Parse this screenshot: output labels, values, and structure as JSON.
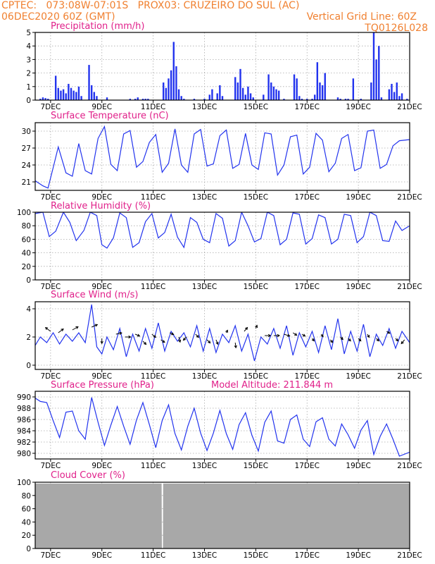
{
  "header": {
    "line1": "CPTEC:   073:08W-07:01S   PROX03: CRUZEIRO DO SUL (AC)",
    "date": "06DEC2020 60Z (GMT)",
    "grid_note": "Vertical Grid Line: 60Z",
    "code": "TQ0126L028",
    "color": "#f08030"
  },
  "colors": {
    "series": "#2233ee",
    "title": "#e0208a",
    "bar": "#2233ee",
    "cloud": "#a8a8a8",
    "grid": "#aaaaaa"
  },
  "x_ticks": [
    "7DEC",
    "9DEC",
    "11DEC",
    "13DEC",
    "15DEC",
    "17DEC",
    "19DEC",
    "21DEC"
  ],
  "x_tick_days": [
    7,
    9,
    11,
    13,
    15,
    17,
    19,
    21
  ],
  "x_range_days": [
    6.4,
    21
  ],
  "chart_data": [
    {
      "type": "bar",
      "title": "Precipitation (mm/h)",
      "ylim": [
        0,
        5
      ],
      "yticks": [
        0,
        1,
        2,
        3,
        4,
        5
      ],
      "grid": true,
      "x": [
        6.6,
        6.7,
        6.8,
        6.9,
        7.2,
        7.3,
        7.4,
        7.5,
        7.6,
        7.7,
        7.8,
        7.9,
        8.0,
        8.1,
        8.2,
        8.5,
        8.6,
        8.7,
        8.8,
        9.2,
        10.1,
        10.3,
        10.4,
        10.6,
        10.7,
        10.8,
        11.4,
        11.5,
        11.6,
        11.7,
        11.8,
        11.9,
        12.0,
        12.1,
        12.2,
        12.6,
        13.0,
        13.2,
        13.3,
        13.5,
        13.6,
        13.7,
        14.2,
        14.3,
        14.4,
        14.5,
        14.6,
        14.7,
        14.8,
        14.9,
        15.3,
        15.5,
        15.6,
        15.7,
        15.8,
        15.9,
        16.1,
        16.5,
        16.6,
        16.7,
        16.8,
        17.0,
        17.2,
        17.3,
        17.4,
        17.5,
        17.6,
        17.7,
        18.2,
        18.3,
        18.5,
        18.6,
        18.8,
        19.1,
        19.5,
        19.6,
        19.7,
        19.8,
        19.9,
        20.2,
        20.3,
        20.4,
        20.5,
        20.6,
        20.7,
        20.9
      ],
      "values": [
        0.1,
        0.2,
        0.15,
        0.1,
        1.8,
        0.9,
        0.7,
        0.8,
        0.5,
        1.2,
        0.9,
        0.7,
        0.6,
        1.0,
        0.3,
        2.6,
        1.1,
        0.6,
        0.3,
        0.2,
        0.1,
        0.1,
        0.2,
        0.1,
        0.1,
        0.1,
        1.3,
        0.9,
        1.6,
        2.2,
        4.3,
        2.5,
        0.8,
        0.3,
        0.1,
        0.1,
        0.1,
        0.4,
        0.8,
        0.5,
        1.1,
        0.3,
        1.7,
        1.3,
        2.3,
        0.9,
        0.4,
        1.0,
        0.5,
        0.2,
        0.4,
        1.9,
        1.3,
        1.0,
        0.8,
        0.7,
        0.1,
        1.9,
        1.6,
        0.3,
        0.1,
        0.1,
        0.1,
        0.4,
        2.8,
        1.3,
        1.1,
        2.0,
        0.2,
        0.1,
        0.1,
        0.1,
        1.6,
        0.1,
        1.3,
        5.0,
        3.0,
        4.0,
        0.2,
        0.8,
        1.2,
        0.6,
        1.3,
        0.3,
        0.5,
        0.1
      ]
    },
    {
      "type": "line",
      "title": "Surface Temperature (nC)",
      "ylim": [
        19.5,
        31.5
      ],
      "yticks": [
        21,
        24,
        27,
        30
      ],
      "grid": true,
      "x": [
        6.4,
        6.7,
        6.9,
        7.1,
        7.3,
        7.6,
        7.85,
        8.1,
        8.35,
        8.6,
        8.85,
        9.1,
        9.35,
        9.6,
        9.85,
        10.1,
        10.35,
        10.6,
        10.85,
        11.1,
        11.35,
        11.6,
        11.85,
        12.1,
        12.35,
        12.6,
        12.85,
        13.1,
        13.35,
        13.6,
        13.85,
        14.1,
        14.35,
        14.6,
        14.85,
        15.1,
        15.35,
        15.6,
        15.85,
        16.1,
        16.35,
        16.6,
        16.85,
        17.1,
        17.35,
        17.6,
        17.85,
        18.1,
        18.35,
        18.6,
        18.85,
        19.1,
        19.35,
        19.6,
        19.85,
        20.1,
        20.35,
        20.6,
        21.0
      ],
      "values": [
        21.2,
        20.3,
        19.9,
        23.5,
        27.2,
        22.6,
        22.0,
        27.8,
        23.0,
        22.4,
        28.7,
        30.8,
        24.1,
        23.0,
        29.5,
        30.1,
        23.6,
        24.6,
        28.0,
        29.4,
        22.7,
        24.3,
        30.4,
        24.0,
        22.7,
        29.5,
        30.3,
        23.8,
        24.2,
        29.2,
        30.2,
        23.4,
        24.1,
        29.6,
        24.0,
        23.2,
        29.7,
        29.5,
        22.2,
        24.0,
        29.0,
        29.3,
        22.4,
        23.6,
        29.6,
        28.4,
        22.8,
        24.3,
        28.7,
        29.4,
        23.0,
        23.5,
        30.0,
        30.2,
        23.4,
        24.1,
        27.4,
        28.3,
        28.5
      ]
    },
    {
      "type": "line",
      "title": "Relative Humidity (%)",
      "ylim": [
        0,
        100
      ],
      "yticks": [
        0,
        20,
        40,
        60,
        80,
        100
      ],
      "grid": true,
      "x": [
        6.4,
        6.7,
        6.95,
        7.2,
        7.5,
        7.75,
        8.0,
        8.3,
        8.55,
        8.8,
        9.0,
        9.2,
        9.45,
        9.7,
        9.95,
        10.2,
        10.45,
        10.7,
        10.95,
        11.2,
        11.45,
        11.7,
        11.95,
        12.2,
        12.45,
        12.7,
        12.95,
        13.2,
        13.45,
        13.7,
        13.95,
        14.2,
        14.45,
        14.7,
        14.95,
        15.2,
        15.45,
        15.7,
        15.95,
        16.2,
        16.45,
        16.7,
        16.95,
        17.2,
        17.45,
        17.7,
        17.95,
        18.2,
        18.45,
        18.7,
        18.95,
        19.2,
        19.45,
        19.7,
        19.95,
        20.2,
        20.45,
        20.7,
        21.0
      ],
      "values": [
        98,
        100,
        64,
        72,
        100,
        85,
        58,
        73,
        100,
        95,
        52,
        47,
        62,
        99,
        92,
        48,
        55,
        86,
        98,
        62,
        70,
        97,
        63,
        48,
        92,
        85,
        60,
        55,
        98,
        91,
        50,
        58,
        100,
        80,
        56,
        61,
        100,
        95,
        52,
        60,
        99,
        97,
        53,
        61,
        96,
        92,
        53,
        60,
        97,
        95,
        55,
        64,
        100,
        95,
        58,
        57,
        87,
        73,
        80
      ]
    },
    {
      "type": "line",
      "title": "Surface Wind (m/s)",
      "ylim": [
        -0.3,
        4.5
      ],
      "yticks": [
        0,
        2,
        4
      ],
      "grid": true,
      "x": [
        6.4,
        6.6,
        6.85,
        7.1,
        7.35,
        7.6,
        7.85,
        8.1,
        8.35,
        8.6,
        8.8,
        9.0,
        9.2,
        9.45,
        9.7,
        9.95,
        10.2,
        10.45,
        10.7,
        10.95,
        11.2,
        11.45,
        11.7,
        11.95,
        12.2,
        12.45,
        12.7,
        12.95,
        13.2,
        13.45,
        13.7,
        13.95,
        14.2,
        14.45,
        14.7,
        14.95,
        15.2,
        15.45,
        15.7,
        15.95,
        16.2,
        16.45,
        16.7,
        16.95,
        17.2,
        17.45,
        17.7,
        17.95,
        18.2,
        18.45,
        18.7,
        18.95,
        19.2,
        19.45,
        19.7,
        19.95,
        20.2,
        20.45,
        20.7,
        21.0
      ],
      "values": [
        1.4,
        2.0,
        1.6,
        2.3,
        1.5,
        2.2,
        1.7,
        2.3,
        1.6,
        4.3,
        1.3,
        0.8,
        2.0,
        1.1,
        2.6,
        0.6,
        2.2,
        1.0,
        2.6,
        1.2,
        3.0,
        1.0,
        2.4,
        1.7,
        2.3,
        1.3,
        2.8,
        1.0,
        2.6,
        0.9,
        2.2,
        1.6,
        2.8,
        1.0,
        2.2,
        0.3,
        2.0,
        1.5,
        2.6,
        1.2,
        2.8,
        0.7,
        2.3,
        1.3,
        2.4,
        0.9,
        2.8,
        1.1,
        3.3,
        0.8,
        2.4,
        1.0,
        2.9,
        0.6,
        2.2,
        1.4,
        2.6,
        1.2,
        2.4,
        1.6
      ],
      "arrows_x": [
        7.0,
        7.3,
        7.85,
        8.6,
        9.0,
        9.55,
        9.9,
        10.3,
        10.6,
        10.95,
        11.3,
        11.65,
        12.0,
        12.3,
        12.65,
        13.1,
        13.45,
        13.85,
        14.2,
        14.55,
        15.0,
        15.35,
        15.7,
        16.1,
        16.45,
        16.8,
        17.2,
        17.55,
        17.9,
        18.3,
        18.6,
        19.0,
        19.35,
        19.7,
        20.1,
        20.45,
        20.8
      ],
      "arrows_y": [
        2.4,
        2.3,
        2.5,
        2.7,
        1.9,
        2.2,
        2.0,
        2.2,
        1.7,
        2.2,
        1.8,
        2.3,
        2.0,
        2.0,
        2.2,
        1.8,
        1.8,
        2.3,
        1.6,
        2.4,
        2.6,
        2.1,
        2.1,
        2.2,
        2.3,
        2.2,
        1.9,
        2.2,
        1.8,
        2.0,
        1.9,
        1.9,
        2.2,
        1.9,
        2.4,
        1.9,
        1.8
      ],
      "arrows_u": [
        -0.8,
        0.8,
        0.9,
        0.9,
        0,
        0.9,
        0.9,
        0.7,
        0.5,
        0.6,
        0.6,
        0.6,
        0.2,
        -0.5,
        0.5,
        0.5,
        0.3,
        0.2,
        0.1,
        0.5,
        0.2,
        0.9,
        0.9,
        0.9,
        0.6,
        0.5,
        0.3,
        0.3,
        0.4,
        0.4,
        0.4,
        0.4,
        0.3,
        0.4,
        0.5,
        0.4,
        -0.5
      ],
      "arrows_v": [
        0.6,
        0.6,
        0.5,
        0.4,
        -0.8,
        0.2,
        0,
        -0.3,
        -0.5,
        -0.5,
        -0.4,
        -0.3,
        -0.8,
        -0.5,
        -0.5,
        -0.5,
        -0.7,
        0.4,
        -0.8,
        0.6,
        0.5,
        0,
        0,
        -0.3,
        -0.4,
        -0.3,
        -0.4,
        -0.4,
        -0.4,
        -0.4,
        -0.4,
        -0.4,
        -0.5,
        -0.4,
        -0.3,
        -0.4,
        -0.6
      ]
    },
    {
      "type": "line",
      "title": "Surface Pressure (hPa)",
      "annotation": "Model Altitude: 211.844 m",
      "ylim": [
        979,
        991
      ],
      "yticks": [
        980,
        982,
        984,
        986,
        988,
        990
      ],
      "grid": true,
      "x": [
        6.4,
        6.6,
        6.85,
        7.1,
        7.35,
        7.6,
        7.85,
        8.1,
        8.35,
        8.6,
        8.85,
        9.1,
        9.35,
        9.6,
        9.85,
        10.1,
        10.35,
        10.6,
        10.85,
        11.1,
        11.35,
        11.6,
        11.85,
        12.1,
        12.35,
        12.6,
        12.85,
        13.1,
        13.35,
        13.6,
        13.85,
        14.1,
        14.35,
        14.6,
        14.85,
        15.1,
        15.35,
        15.6,
        15.85,
        16.1,
        16.35,
        16.6,
        16.85,
        17.1,
        17.35,
        17.6,
        17.85,
        18.1,
        18.35,
        18.6,
        18.85,
        19.1,
        19.35,
        19.6,
        19.85,
        20.1,
        20.35,
        20.6,
        21.0
      ],
      "values": [
        989.8,
        989.2,
        989.0,
        985.8,
        982.8,
        987.3,
        987.5,
        984.0,
        982.5,
        989.9,
        985.5,
        981.4,
        985.0,
        988.3,
        984.8,
        981.6,
        985.9,
        989.0,
        985.1,
        981.0,
        985.8,
        988.6,
        983.5,
        980.6,
        984.8,
        988.0,
        983.6,
        980.5,
        983.6,
        987.6,
        983.5,
        980.7,
        985.1,
        987.2,
        983.2,
        980.4,
        985.5,
        987.5,
        982.2,
        981.8,
        986.0,
        986.8,
        982.5,
        981.2,
        985.6,
        986.3,
        982.5,
        981.3,
        985.2,
        983.3,
        980.9,
        984.1,
        985.8,
        979.8,
        983.0,
        985.2,
        982.5,
        979.5,
        980.2
      ]
    },
    {
      "type": "area",
      "title": "Cloud Cover (%)",
      "ylim": [
        0,
        100
      ],
      "yticks": [
        0,
        20,
        40,
        60,
        80,
        100
      ],
      "grid": true,
      "x": [
        6.4,
        11.33,
        11.34,
        11.38,
        11.39,
        21.0
      ],
      "values": [
        98,
        98,
        0,
        0,
        98,
        98
      ]
    }
  ]
}
